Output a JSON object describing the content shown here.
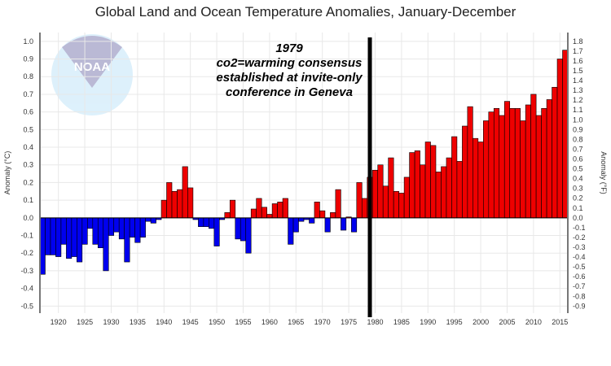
{
  "chart_data": {
    "type": "bar",
    "title": "Global Land and Ocean Temperature Anomalies, January-December",
    "ylabel": "Anomaly (°C)",
    "ylabel_right": "Anomaly (°F)",
    "xlabel": "",
    "ylim": [
      -0.54,
      1.05
    ],
    "y_ticks": [
      "1.0",
      "0.9",
      "0.8",
      "0.7",
      "0.6",
      "0.5",
      "0.4",
      "0.3",
      "0.2",
      "0.1",
      "0.0",
      "-0.1",
      "-0.2",
      "-0.3",
      "-0.4",
      "-0.5"
    ],
    "y_ticks_right": [
      "1.8",
      "1.7",
      "1.6",
      "1.5",
      "1.4",
      "1.3",
      "1.2",
      "1.1",
      "1.0",
      "0.9",
      "0.8",
      "0.7",
      "0.6",
      "0.5",
      "0.4",
      "0.3",
      "0.2",
      "0.1",
      "0.0",
      "-0.1",
      "-0.2",
      "-0.3",
      "-0.4",
      "-0.5",
      "-0.6",
      "-0.7",
      "-0.8",
      "-0.9"
    ],
    "x_ticks": [
      "1920",
      "1925",
      "1930",
      "1935",
      "1940",
      "1945",
      "1950",
      "1955",
      "1960",
      "1965",
      "1970",
      "1975",
      "1980",
      "1985",
      "1990",
      "1995",
      "2000",
      "2005",
      "2010",
      "2015"
    ],
    "grid": true,
    "colors": {
      "positive": "#ee0000",
      "negative": "#0000ee",
      "marker": "#000000"
    },
    "start_year": 1917,
    "values": [
      -0.32,
      -0.21,
      -0.21,
      -0.22,
      -0.15,
      -0.23,
      -0.22,
      -0.25,
      -0.15,
      -0.06,
      -0.15,
      -0.17,
      -0.3,
      -0.1,
      -0.08,
      -0.12,
      -0.25,
      -0.11,
      -0.14,
      -0.11,
      -0.02,
      -0.03,
      -0.01,
      0.1,
      0.2,
      0.15,
      0.16,
      0.29,
      0.17,
      -0.01,
      -0.05,
      -0.05,
      -0.06,
      -0.16,
      -0.01,
      0.03,
      0.1,
      -0.12,
      -0.13,
      -0.2,
      0.05,
      0.11,
      0.06,
      0.02,
      0.08,
      0.09,
      0.11,
      -0.15,
      -0.08,
      -0.02,
      -0.01,
      -0.03,
      0.09,
      0.04,
      -0.08,
      0.03,
      0.16,
      -0.07,
      0.005,
      -0.08,
      0.2,
      0.11,
      0.23,
      0.27,
      0.3,
      0.18,
      0.34,
      0.15,
      0.14,
      0.23,
      0.37,
      0.38,
      0.3,
      0.43,
      0.41,
      0.26,
      0.29,
      0.34,
      0.46,
      0.32,
      0.52,
      0.63,
      0.45,
      0.43,
      0.55,
      0.6,
      0.62,
      0.58,
      0.66,
      0.62,
      0.62,
      0.55,
      0.64,
      0.7,
      0.58,
      0.62,
      0.67,
      0.74,
      0.9,
      0.95
    ],
    "marker_year": 1979,
    "annotation": [
      "1979",
      "co2=warming consensus",
      "established at invite-only",
      "conference in Geneva"
    ],
    "watermark": "NOAA"
  }
}
